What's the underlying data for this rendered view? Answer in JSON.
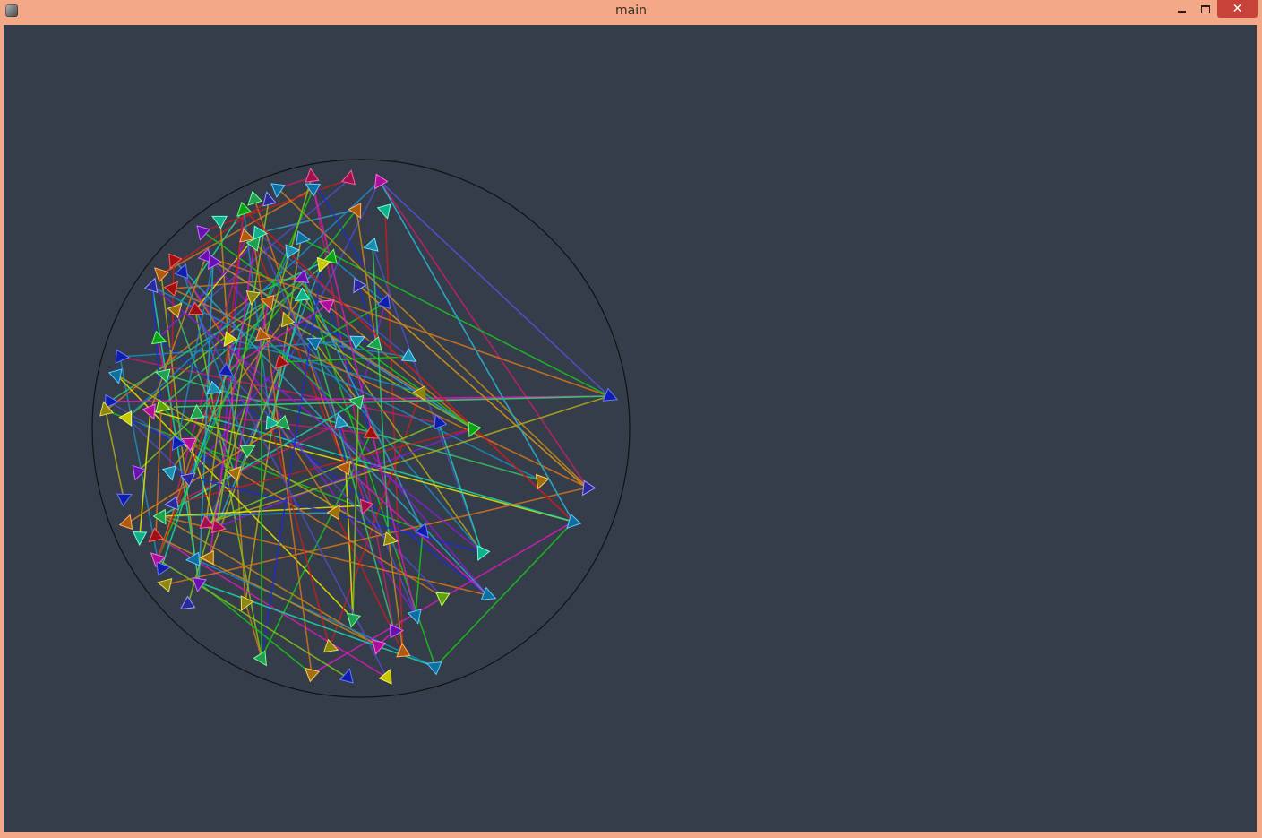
{
  "window": {
    "title": "main",
    "icon": "app-icon",
    "controls": {
      "minimize_icon": "minimize-icon",
      "maximize_icon": "maximize-icon",
      "close_glyph": "✕"
    },
    "colors": {
      "frame": "#f3a887",
      "canvas": "#353d4a",
      "close_button": "#c7433a",
      "circle_stroke": "#111111"
    }
  }
}
